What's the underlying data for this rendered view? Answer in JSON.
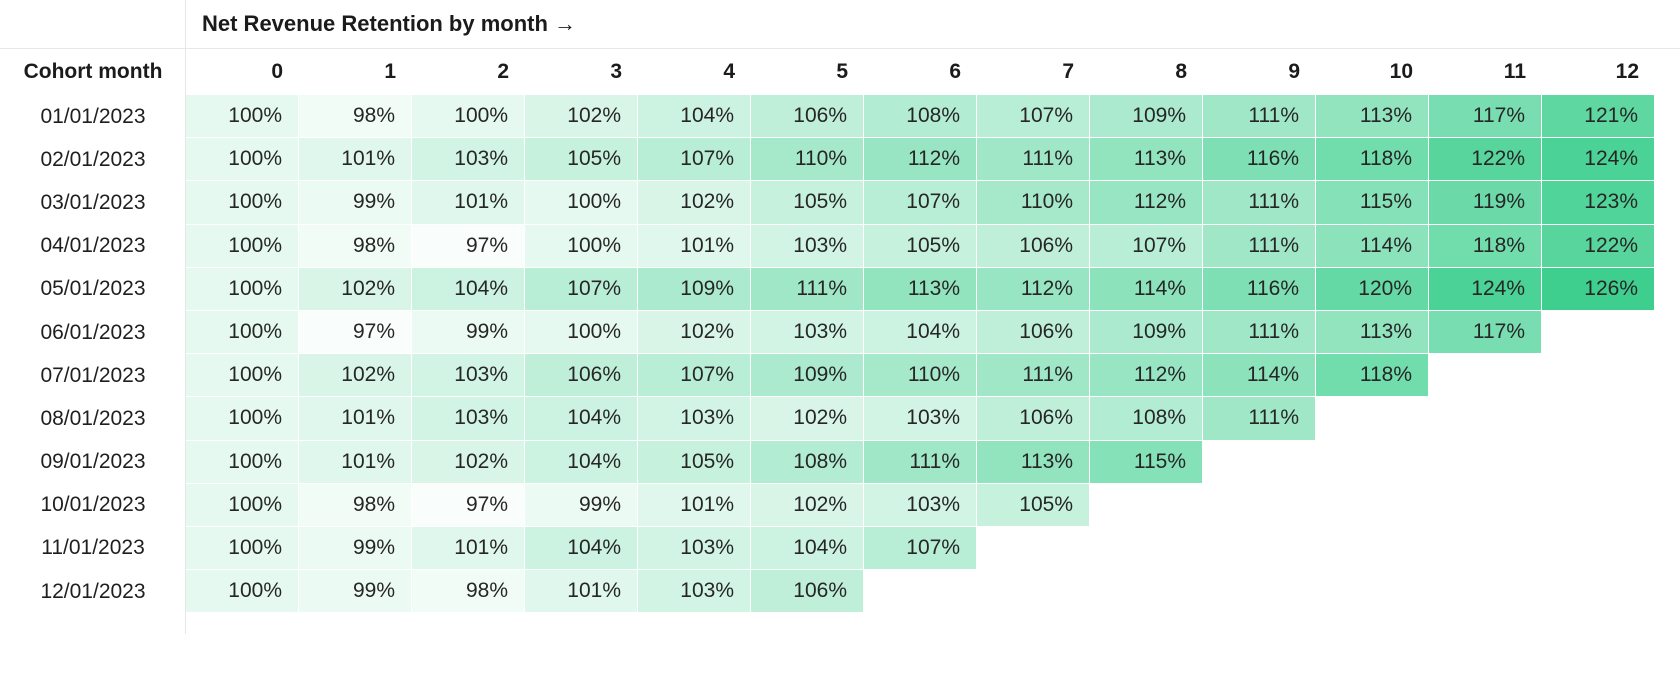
{
  "chart_data": {
    "type": "heatmap",
    "title": "Net Revenue Retention by month →",
    "row_label_header": "Cohort month",
    "columns": [
      "0",
      "1",
      "2",
      "3",
      "4",
      "5",
      "6",
      "7",
      "8",
      "9",
      "10",
      "11",
      "12"
    ],
    "unit": "%",
    "rows": [
      {
        "cohort": "01/01/2023",
        "values": [
          100,
          98,
          100,
          102,
          104,
          106,
          108,
          107,
          109,
          111,
          113,
          117,
          121
        ]
      },
      {
        "cohort": "02/01/2023",
        "values": [
          100,
          101,
          103,
          105,
          107,
          110,
          112,
          111,
          113,
          116,
          118,
          122,
          124
        ]
      },
      {
        "cohort": "03/01/2023",
        "values": [
          100,
          99,
          101,
          100,
          102,
          105,
          107,
          110,
          112,
          111,
          115,
          119,
          123
        ]
      },
      {
        "cohort": "04/01/2023",
        "values": [
          100,
          98,
          97,
          100,
          101,
          103,
          105,
          106,
          107,
          111,
          114,
          118,
          122
        ]
      },
      {
        "cohort": "05/01/2023",
        "values": [
          100,
          102,
          104,
          107,
          109,
          111,
          113,
          112,
          114,
          116,
          120,
          124,
          126
        ]
      },
      {
        "cohort": "06/01/2023",
        "values": [
          100,
          97,
          99,
          100,
          102,
          103,
          104,
          106,
          109,
          111,
          113,
          117
        ]
      },
      {
        "cohort": "07/01/2023",
        "values": [
          100,
          102,
          103,
          106,
          107,
          109,
          110,
          111,
          112,
          114,
          118
        ]
      },
      {
        "cohort": "08/01/2023",
        "values": [
          100,
          101,
          103,
          104,
          103,
          102,
          103,
          106,
          108,
          111
        ]
      },
      {
        "cohort": "09/01/2023",
        "values": [
          100,
          101,
          102,
          104,
          105,
          108,
          111,
          113,
          115
        ]
      },
      {
        "cohort": "10/01/2023",
        "values": [
          100,
          98,
          97,
          99,
          101,
          102,
          103,
          105
        ]
      },
      {
        "cohort": "11/01/2023",
        "values": [
          100,
          99,
          101,
          104,
          103,
          104,
          107
        ]
      },
      {
        "cohort": "12/01/2023",
        "values": [
          100,
          99,
          98,
          101,
          103,
          106
        ]
      }
    ],
    "color_scale": {
      "min_color": "#ffffff",
      "max_color": "#3ecf8e",
      "domain": [
        96,
        126
      ]
    },
    "layout": {
      "legend": "none",
      "grid": "off",
      "value_alignment": "right"
    }
  }
}
